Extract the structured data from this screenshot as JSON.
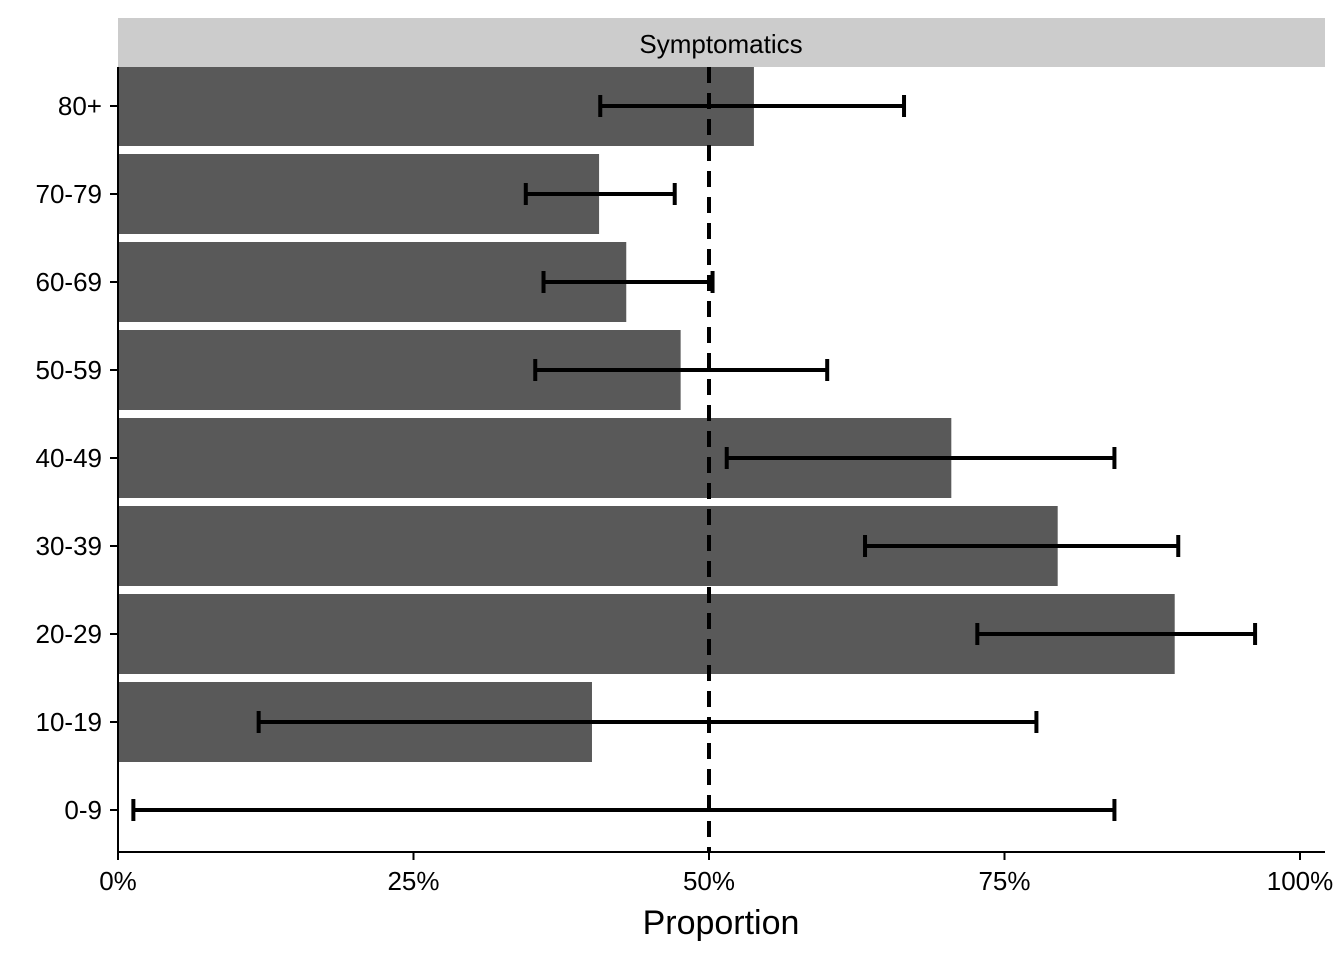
{
  "chart_data": {
    "type": "bar",
    "orientation": "horizontal",
    "panel_title": "Symptomatics",
    "xlabel": "Proportion",
    "ylabel": "",
    "xlim": [
      0,
      1
    ],
    "x_ticks": [
      0,
      0.25,
      0.5,
      0.75,
      1.0
    ],
    "x_tick_labels": [
      "0%",
      "25%",
      "50%",
      "75%",
      "100%"
    ],
    "reference_line": {
      "x": 0.5,
      "style": "dashed"
    },
    "categories": [
      "80+",
      "70-79",
      "60-69",
      "50-59",
      "40-49",
      "30-39",
      "20-29",
      "10-19",
      "0-9"
    ],
    "values": [
      0.538,
      0.407,
      0.43,
      0.476,
      0.705,
      0.795,
      0.894,
      0.401,
      0.0
    ],
    "error_low": [
      0.408,
      0.345,
      0.36,
      0.353,
      0.515,
      0.632,
      0.727,
      0.119,
      0.013
    ],
    "error_high": [
      0.665,
      0.471,
      0.503,
      0.6,
      0.843,
      0.897,
      0.962,
      0.777,
      0.843
    ],
    "bar_color": "#595959",
    "strip_color": "#cccccc",
    "grid": false
  }
}
